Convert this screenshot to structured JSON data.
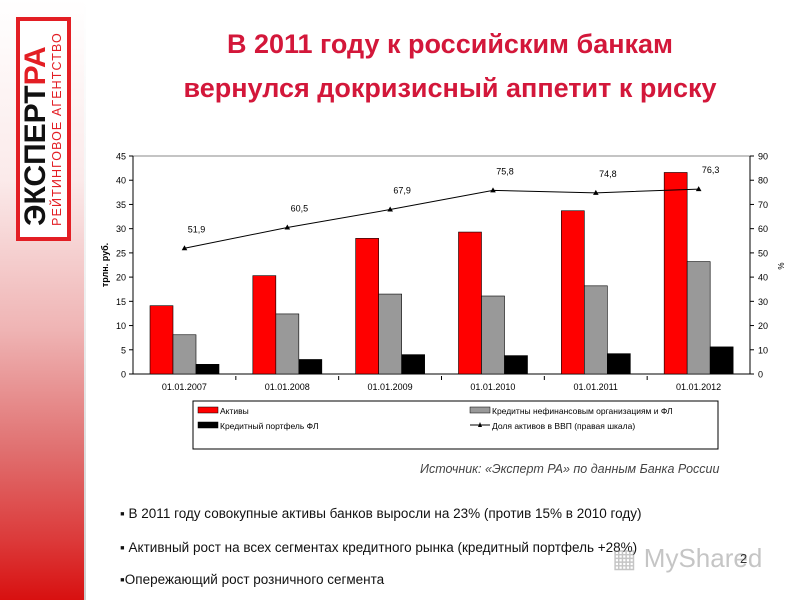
{
  "logo": {
    "main_black": "ЭКСПЕРТ",
    "main_red": "РА",
    "subtitle": "РЕЙТИНГОВОЕ АГЕНТСТВО"
  },
  "title": {
    "line1": "В 2011 году к российским банкам",
    "line2": "вернулся докризисный аппетит к риску"
  },
  "source": "Источник: «Эксперт РА» по данным Банка России",
  "bullets": [
    "▪  В 2011 году совокупные активы банков выросли на 23% (против 15% в 2010 году)",
    "▪  Активный рост на всех сегментах кредитного рынка (кредитный портфель +28%)",
    "▪Опережающий рост розничного сегмента"
  ],
  "page_number": "2",
  "watermark": "MyShared",
  "colors": {
    "title": "#d3173a",
    "assets": "#ff0000",
    "loans_nonfin": "#999999",
    "retail": "#000000",
    "line": "#000000"
  },
  "chart_data": {
    "type": "bar",
    "title": "",
    "categories": [
      "01.01.2007",
      "01.01.2008",
      "01.01.2009",
      "01.01.2010",
      "01.01.2011",
      "01.01.2012"
    ],
    "series": [
      {
        "name": "Активы",
        "type": "bar",
        "axis": "left",
        "color": "#ff0000",
        "values": [
          14.1,
          20.3,
          28.0,
          29.3,
          33.7,
          41.6
        ]
      },
      {
        "name": "Кредитны нефинансовым организациям и ФЛ",
        "type": "bar",
        "axis": "left",
        "color": "#999999",
        "values": [
          8.1,
          12.4,
          16.5,
          16.1,
          18.2,
          23.2
        ]
      },
      {
        "name": "Кредитный портфель ФЛ",
        "type": "bar",
        "axis": "left",
        "color": "#000000",
        "values": [
          2.0,
          3.0,
          4.0,
          3.8,
          4.2,
          5.6
        ]
      },
      {
        "name": "Доля активов в ВВП (правая шкала)",
        "type": "line",
        "axis": "right",
        "color": "#000000",
        "values": [
          51.9,
          60.5,
          67.9,
          75.8,
          74.8,
          76.3
        ],
        "labels": [
          "51,9",
          "60,5",
          "67,9",
          "75,8",
          "74,8",
          "76,3"
        ]
      }
    ],
    "ylabel": "трлн. руб.",
    "ylabel_right": "%",
    "ylim": [
      0,
      45
    ],
    "ylim_right": [
      0,
      90
    ],
    "yticks": [
      0,
      5,
      10,
      15,
      20,
      25,
      30,
      35,
      40,
      45
    ],
    "yticks_right": [
      0,
      10,
      20,
      30,
      40,
      50,
      60,
      70,
      80,
      90
    ],
    "grid": false,
    "legend_position": "bottom",
    "legend": [
      {
        "label": "Активы",
        "swatch": "bar",
        "color": "#ff0000"
      },
      {
        "label": "Кредитны нефинансовым организациям и ФЛ",
        "swatch": "bar",
        "color": "#999999"
      },
      {
        "label": "Кредитный портфель ФЛ",
        "swatch": "bar",
        "color": "#000000"
      },
      {
        "label": "Доля активов в ВВП (правая шкала)",
        "swatch": "line",
        "color": "#000000"
      }
    ]
  }
}
